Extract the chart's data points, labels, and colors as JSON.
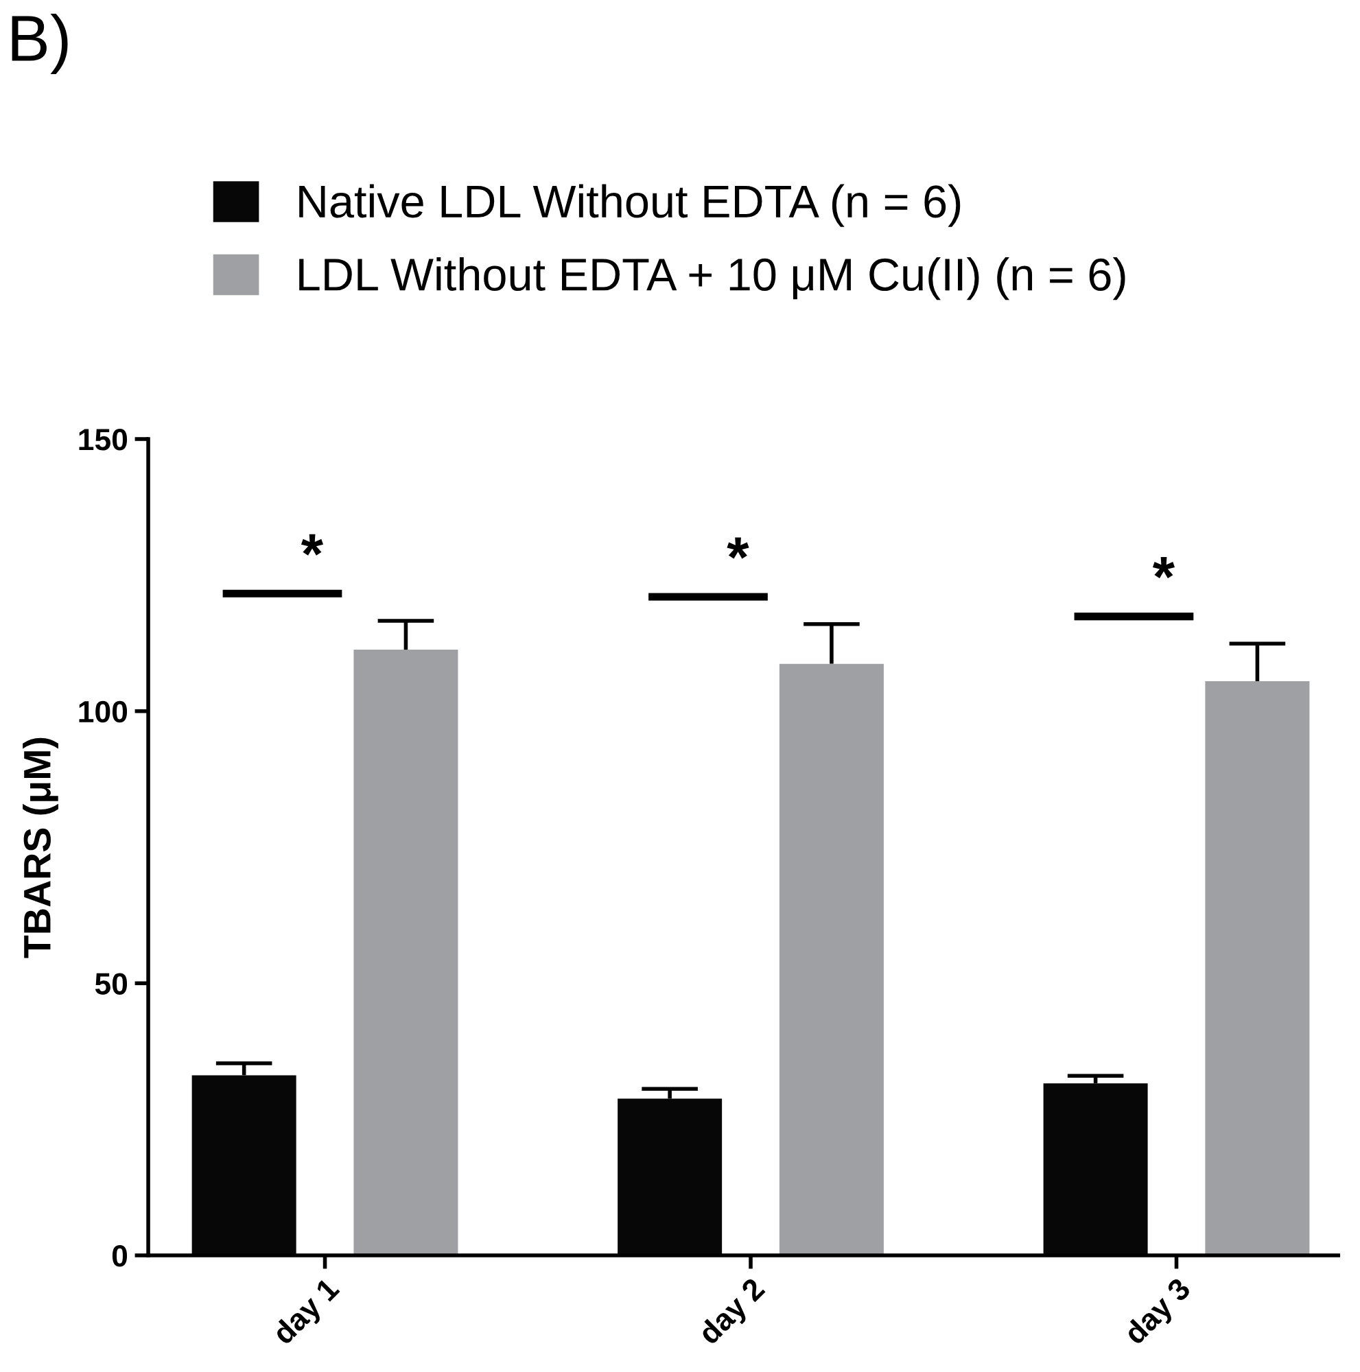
{
  "chart_data": {
    "type": "bar",
    "title": "B)",
    "ylabel": "TBARS (μM)",
    "categories": [
      "day 1",
      "day 2",
      "day 3"
    ],
    "series": [
      {
        "name": "Native LDL Without EDTA (n = 6)",
        "color": "#070707",
        "values": [
          33.1,
          28.8,
          31.6
        ],
        "errors": [
          [
            33.1,
            35.3
          ],
          [
            28.8,
            30.6
          ],
          [
            31.6,
            33.0
          ]
        ]
      },
      {
        "name": "LDL Without EDTA + 10 μM Cu(II) (n = 6)",
        "color": "#9fa0a4",
        "values": [
          111.3,
          108.7,
          105.5
        ],
        "errors": [
          [
            111.3,
            116.6
          ],
          [
            108.7,
            116.0
          ],
          [
            105.5,
            112.4
          ]
        ]
      }
    ],
    "annotations": [
      "*",
      "*",
      "*"
    ],
    "ylim": [
      0,
      150
    ],
    "yticks": [
      0,
      50,
      100,
      150
    ],
    "grid": false,
    "legend": "top left"
  }
}
